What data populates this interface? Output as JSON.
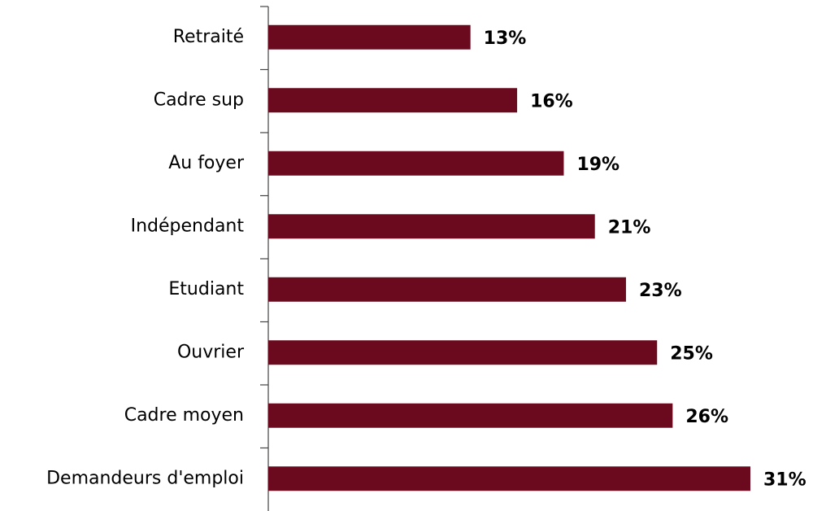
{
  "chart_data": {
    "type": "hbar",
    "categories": [
      "Retraité",
      "Cadre sup",
      "Au foyer",
      "Indépendant",
      "Etudiant",
      "Ouvrier",
      "Cadre moyen",
      "Demandeurs d'emploi"
    ],
    "values": [
      13,
      16,
      19,
      21,
      23,
      25,
      26,
      31
    ],
    "value_labels": [
      "13%",
      "16%",
      "19%",
      "21%",
      "23%",
      "25%",
      "26%",
      "31%"
    ],
    "color": "#6b0a1f"
  }
}
